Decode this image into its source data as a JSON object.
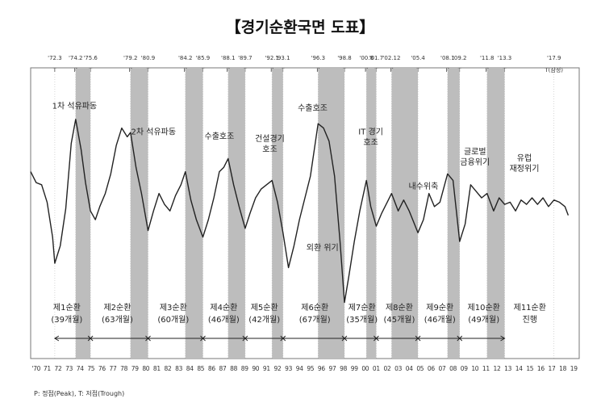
{
  "chart_data": {
    "type": "line",
    "title": "【경기순환국면 도표】",
    "x_range": [
      1970,
      2019
    ],
    "y_range": [
      0,
      100
    ],
    "grid": false,
    "year_tick_labels": [
      "'70",
      "71",
      "72",
      "73",
      "74",
      "75",
      "76",
      "77",
      "78",
      "79",
      "80",
      "81",
      "82",
      "83",
      "84",
      "85",
      "86",
      "87",
      "88",
      "89",
      "90",
      "91",
      "92",
      "93",
      "94",
      "95",
      "96",
      "97",
      "98",
      "99",
      "00",
      "01",
      "02",
      "03",
      "04",
      "05",
      "06",
      "07",
      "08",
      "09",
      "10",
      "11",
      "12",
      "13",
      "14",
      "15",
      "16",
      "17",
      "18",
      "19"
    ],
    "turning_points": [
      {
        "date": "'72.3",
        "type": "T",
        "x": 1972.2
      },
      {
        "date": "'74.2",
        "type": "P",
        "x": 1974.1
      },
      {
        "date": "'75.6",
        "type": "T",
        "x": 1975.45
      },
      {
        "date": "'79.2",
        "type": "P",
        "x": 1979.1
      },
      {
        "date": "'80.9",
        "type": "T",
        "x": 1980.7
      },
      {
        "date": "'84.2",
        "type": "P",
        "x": 1984.1
      },
      {
        "date": "'85.9",
        "type": "T",
        "x": 1985.7
      },
      {
        "date": "'88.1",
        "type": "P",
        "x": 1988.0
      },
      {
        "date": "'89.7",
        "type": "T",
        "x": 1989.55
      },
      {
        "date": "'92.1",
        "type": "P",
        "x": 1992.0
      },
      {
        "date": "'93.1",
        "type": "T",
        "x": 1993.0
      },
      {
        "date": "'96.3",
        "type": "P",
        "x": 1996.2
      },
      {
        "date": "'98.8",
        "type": "T",
        "x": 1998.6
      },
      {
        "date": "'00.8",
        "type": "P",
        "x": 2000.6
      },
      {
        "date": "'01.7",
        "type": "T",
        "x": 2001.5
      },
      {
        "date": "'02.12",
        "type": "P",
        "x": 2002.9
      },
      {
        "date": "'05.4",
        "type": "T",
        "x": 2005.3
      },
      {
        "date": "'08.1",
        "type": "P",
        "x": 2008.0
      },
      {
        "date": "'09.2",
        "type": "T",
        "x": 2009.1
      },
      {
        "date": "'11.8",
        "type": "P",
        "x": 2011.6
      },
      {
        "date": "'13.3",
        "type": "T",
        "x": 2013.2
      },
      {
        "date": "'17.9",
        "type": "T(잠정)",
        "x": 2017.7
      }
    ],
    "recessions": [
      [
        1974.1,
        1975.45
      ],
      [
        1979.1,
        1980.7
      ],
      [
        1984.1,
        1985.7
      ],
      [
        1988.0,
        1989.55
      ],
      [
        1992.0,
        1993.0
      ],
      [
        1996.2,
        1998.6
      ],
      [
        2000.6,
        2001.5
      ],
      [
        2002.9,
        2005.3
      ],
      [
        2008.0,
        2009.1
      ],
      [
        2011.6,
        2013.2
      ]
    ],
    "cycles": [
      {
        "label": "제1순환",
        "sub": "(39개월)",
        "x": 1973.3
      },
      {
        "label": "제2순환",
        "sub": "(63개월)",
        "x": 1977.9
      },
      {
        "label": "제3순환",
        "sub": "(60개월)",
        "x": 1983.0
      },
      {
        "label": "제4순환",
        "sub": "(46개월)",
        "x": 1987.6
      },
      {
        "label": "제5순환",
        "sub": "(42개월)",
        "x": 1991.3
      },
      {
        "label": "제6순환",
        "sub": "(67개월)",
        "x": 1995.9
      },
      {
        "label": "제7순환",
        "sub": "(35개월)",
        "x": 2000.2
      },
      {
        "label": "제8순환",
        "sub": "(45개월)",
        "x": 2003.6
      },
      {
        "label": "제9순환",
        "sub": "(46개월)",
        "x": 2007.3
      },
      {
        "label": "제10순환",
        "sub": "(49개월)",
        "x": 2011.3
      },
      {
        "label": "제11순환",
        "sub": "진행",
        "x": 2015.5
      }
    ],
    "cycle_arrow_points": [
      1972.2,
      1975.45,
      1980.7,
      1985.7,
      1989.55,
      1993.0,
      1998.6,
      2001.5,
      2005.3,
      2009.1,
      2013.2
    ],
    "annotations": [
      {
        "text": "1차 석유파동",
        "lines": [
          "1차 석유파동"
        ],
        "x": 1974.0,
        "y": 91
      },
      {
        "text": "2차 석유파동",
        "lines": [
          "2차 석유파동"
        ],
        "x": 1981.2,
        "y": 79
      },
      {
        "text": "수출호조",
        "lines": [
          "수출호조"
        ],
        "x": 1987.2,
        "y": 77
      },
      {
        "text": "건설경기 호조",
        "lines": [
          "건설경기",
          "호조"
        ],
        "x": 1991.8,
        "y": 76
      },
      {
        "text": "수출호조",
        "lines": [
          "수출호조"
        ],
        "x": 1995.7,
        "y": 90
      },
      {
        "text": "외환 위기",
        "lines": [
          "외환 위기"
        ],
        "x": 1996.6,
        "y": 26
      },
      {
        "text": "IT 경기 호조",
        "lines": [
          "IT 경기",
          "호조"
        ],
        "x": 2001.0,
        "y": 79
      },
      {
        "text": "내수위축",
        "lines": [
          "내수위축"
        ],
        "x": 2005.8,
        "y": 54
      },
      {
        "text": "글로벌 금융위기",
        "lines": [
          "글로벌",
          "금융위기"
        ],
        "x": 2010.5,
        "y": 70
      },
      {
        "text": "유럽 재정위기",
        "lines": [
          "유럽",
          "재정위기"
        ],
        "x": 2015.0,
        "y": 67
      }
    ],
    "series": [
      {
        "x": [
          1970,
          1970.5,
          1971,
          1971.5,
          1972,
          1972.2,
          1972.7,
          1973.2,
          1973.7,
          1974.1,
          1974.6,
          1975.0,
          1975.45,
          1975.9,
          1976.3,
          1976.8,
          1977.3,
          1977.8,
          1978.3,
          1978.8,
          1979.1,
          1979.6,
          1980.1,
          1980.7,
          1981.2,
          1981.7,
          1982.2,
          1982.7,
          1983.2,
          1983.7,
          1984.1,
          1984.6,
          1985.1,
          1985.7,
          1986.2,
          1986.7,
          1987.2,
          1987.6,
          1988.0,
          1988.5,
          1989.0,
          1989.55,
          1990.0,
          1990.5,
          1991.0,
          1991.5,
          1992.0,
          1992.5,
          1993.0,
          1993.5,
          1994.0,
          1994.5,
          1995.0,
          1995.5,
          1996.2,
          1996.7,
          1997.2,
          1997.7,
          1998.2,
          1998.6,
          1999.0,
          1999.5,
          2000.0,
          2000.6,
          2001.0,
          2001.5,
          2002.0,
          2002.5,
          2002.9,
          2003.5,
          2004.0,
          2004.5,
          2005.3,
          2005.8,
          2006.3,
          2006.8,
          2007.3,
          2008.0,
          2008.5,
          2009.1,
          2009.6,
          2010.1,
          2010.6,
          2011.1,
          2011.6,
          2012.2,
          2012.7,
          2013.2,
          2013.7,
          2014.2,
          2014.7,
          2015.2,
          2015.7,
          2016.2,
          2016.7,
          2017.2,
          2017.7,
          2018.2,
          2018.7,
          2019.0
        ],
        "y": [
          62,
          57,
          56,
          48,
          32,
          20,
          28,
          45,
          75,
          86,
          72,
          57,
          44,
          40,
          46,
          52,
          61,
          74,
          82,
          78,
          80,
          64,
          52,
          35,
          44,
          52,
          47,
          44,
          51,
          56,
          62,
          49,
          40,
          32,
          40,
          50,
          62,
          64,
          68,
          56,
          46,
          36,
          43,
          50,
          54,
          56,
          58,
          48,
          34,
          18,
          28,
          40,
          50,
          60,
          84,
          82,
          76,
          60,
          30,
          2,
          14,
          30,
          44,
          58,
          46,
          37,
          43,
          48,
          52,
          44,
          49,
          44,
          34,
          40,
          52,
          46,
          48,
          61,
          58,
          30,
          38,
          56,
          53,
          50,
          52,
          44,
          50,
          47,
          48,
          44,
          49,
          47,
          50,
          47,
          50,
          46,
          49,
          48,
          46,
          42
        ]
      }
    ]
  },
  "footnote": "P: 정점(Peak),  T: 저점(Trough)"
}
